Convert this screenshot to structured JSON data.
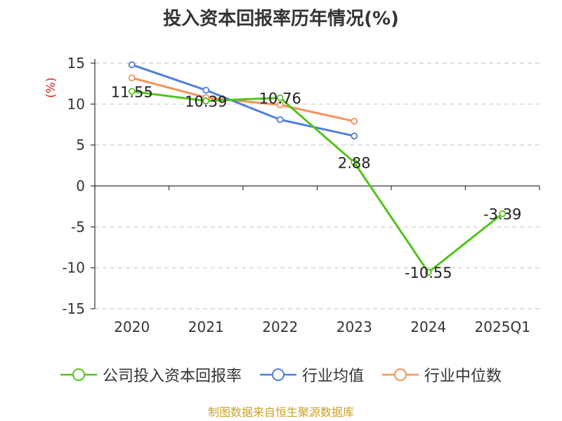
{
  "title": "投入资本回报率历年情况(%)",
  "footer": "制图数据来自恒生聚源数据库",
  "chart_data": {
    "type": "line",
    "categories": [
      "2020",
      "2021",
      "2022",
      "2023",
      "2024",
      "2025Q1"
    ],
    "ylabel": "(%)",
    "ylim": [
      -15,
      15
    ],
    "yticks": [
      15,
      10,
      5,
      0,
      -5,
      -10,
      -15
    ],
    "grid": true,
    "legend_position": "bottom",
    "series": [
      {
        "name": "公司投入资本回报率",
        "color": "#52c41a",
        "values": [
          11.55,
          10.39,
          10.76,
          2.88,
          -10.55,
          -3.39
        ],
        "labels": [
          "11.55",
          "10.39",
          "10.76",
          "2.88",
          "-10.55",
          "-3.39"
        ]
      },
      {
        "name": "行业均值",
        "color": "#4f7fdc",
        "values": [
          14.8,
          11.7,
          8.1,
          6.1,
          null,
          null
        ]
      },
      {
        "name": "行业中位数",
        "color": "#f4935a",
        "values": [
          13.2,
          10.8,
          9.9,
          7.9,
          null,
          null
        ]
      }
    ]
  }
}
